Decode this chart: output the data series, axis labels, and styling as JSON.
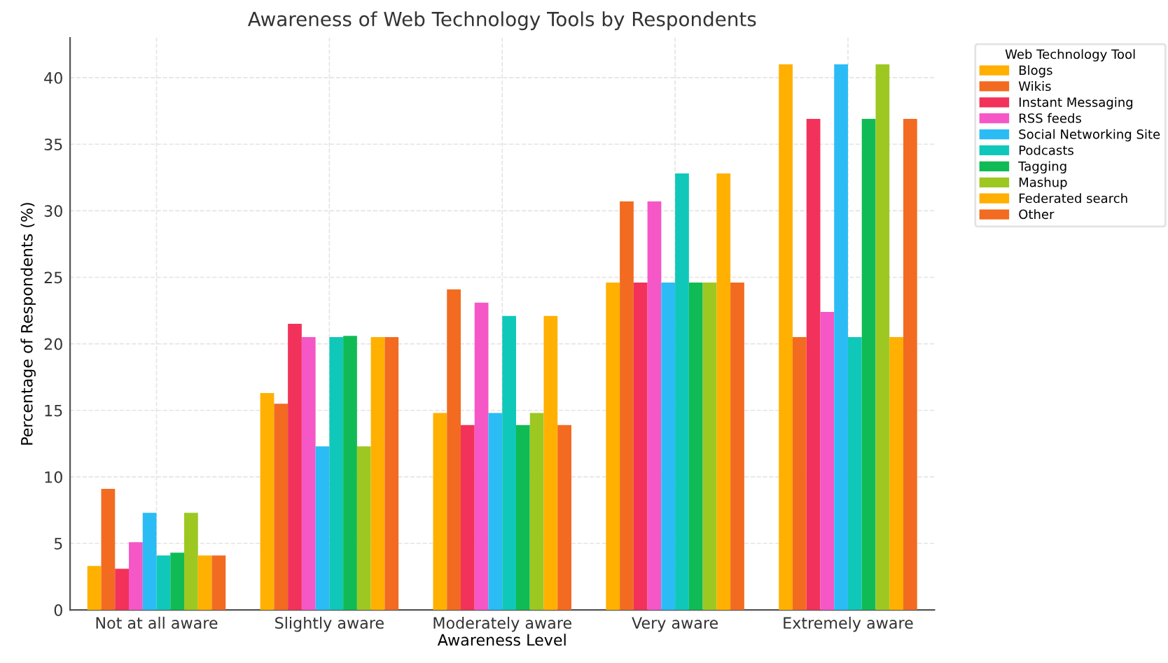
{
  "chart_data": {
    "type": "bar",
    "title": "Awareness of Web Technology Tools by Respondents",
    "xlabel": "Awareness Level",
    "ylabel": "Percentage of Respondents (%)",
    "legend_title": "Web Technology Tool",
    "categories": [
      "Not at all aware",
      "Slightly aware",
      "Moderately aware",
      "Very aware",
      "Extremely aware"
    ],
    "series": [
      {
        "name": "Blogs",
        "color": "#ffb000",
        "values": [
          3.3,
          16.3,
          14.8,
          24.6,
          41.0
        ]
      },
      {
        "name": "Wikis",
        "color": "#f26b21",
        "values": [
          9.1,
          15.5,
          24.1,
          30.7,
          20.5
        ]
      },
      {
        "name": "Instant Messaging",
        "color": "#f2325a",
        "values": [
          3.1,
          21.5,
          13.9,
          24.6,
          36.9
        ]
      },
      {
        "name": "RSS feeds",
        "color": "#f557c6",
        "values": [
          5.1,
          20.5,
          23.1,
          30.7,
          22.4
        ]
      },
      {
        "name": "Social Networking Site",
        "color": "#2bbcf5",
        "values": [
          7.3,
          12.3,
          14.8,
          24.6,
          41.0
        ]
      },
      {
        "name": "Podcasts",
        "color": "#10c8b9",
        "values": [
          4.1,
          20.5,
          22.1,
          32.8,
          20.5
        ]
      },
      {
        "name": "Tagging",
        "color": "#10bb55",
        "values": [
          4.3,
          20.6,
          13.9,
          24.6,
          36.9
        ]
      },
      {
        "name": "Mashup",
        "color": "#9dc822",
        "values": [
          7.3,
          12.3,
          14.8,
          24.6,
          41.0
        ]
      },
      {
        "name": "Federated search",
        "color": "#ffb000",
        "values": [
          4.1,
          20.5,
          22.1,
          32.8,
          20.5
        ]
      },
      {
        "name": "Other",
        "color": "#f26b21",
        "values": [
          4.1,
          20.5,
          13.9,
          24.6,
          36.9
        ]
      }
    ],
    "ylim": [
      0,
      43
    ],
    "yticks": [
      0,
      5,
      10,
      15,
      20,
      25,
      30,
      35,
      40
    ],
    "grid": true,
    "legend": "top right"
  }
}
